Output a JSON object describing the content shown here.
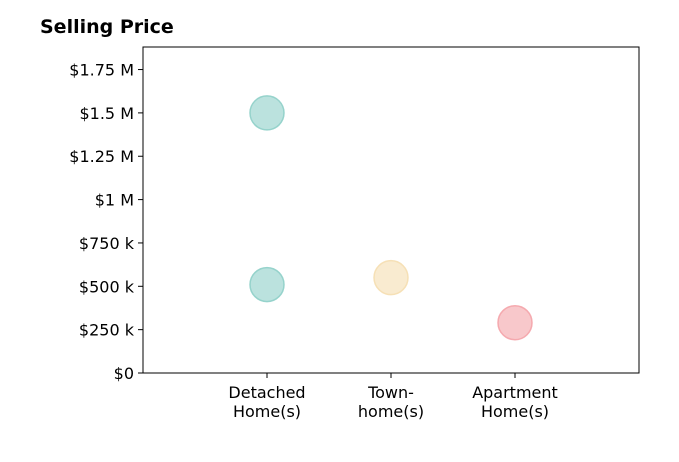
{
  "chart_data": {
    "type": "scatter",
    "title": "Selling Price",
    "categories": [
      "Detached\nHome(s)",
      "Town-\nhome(s)",
      "Apartment\nHome(s)"
    ],
    "yticks": [
      {
        "value": 0,
        "label": "$0"
      },
      {
        "value": 250000,
        "label": "$250 k"
      },
      {
        "value": 500000,
        "label": "$500 k"
      },
      {
        "value": 750000,
        "label": "$750 k"
      },
      {
        "value": 1000000,
        "label": "$1 M"
      },
      {
        "value": 1250000,
        "label": "$1.25 M"
      },
      {
        "value": 1500000,
        "label": "$1.5 M"
      },
      {
        "value": 1750000,
        "label": "$1.75 M"
      }
    ],
    "ylim": [
      0,
      1880000
    ],
    "xlim": [
      -1,
      3
    ],
    "grid": false,
    "points": [
      {
        "category_index": 0,
        "value": 1500000,
        "color": "#8ecfc8"
      },
      {
        "category_index": 0,
        "value": 510000,
        "color": "#8ecfc8"
      },
      {
        "category_index": 1,
        "value": 550000,
        "color": "#f5deb0"
      },
      {
        "category_index": 2,
        "value": 290000,
        "color": "#f4a3a8"
      }
    ],
    "xlabel": "",
    "ylabel": ""
  }
}
